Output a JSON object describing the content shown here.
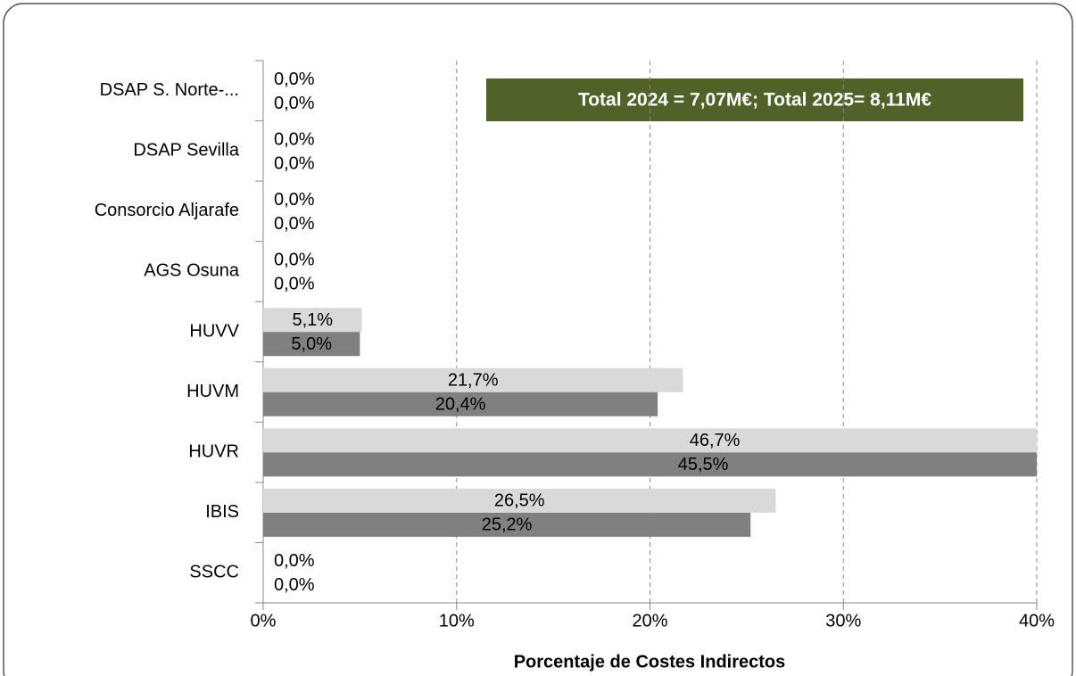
{
  "chart_data": {
    "type": "hbar",
    "annotation": "Total 2024 = 7,07M€; Total 2025= 8,11M€",
    "x_label": "Porcentaje de Costes Indirectos",
    "categories": [
      "DSAP S. Norte-...",
      "DSAP Sevilla",
      "Consorcio Aljarafe",
      "AGS Osuna",
      "HUVV",
      "HUVM",
      "HUVR",
      "IBIS",
      "SSCC"
    ],
    "series": [
      {
        "color": "#d9d9d9",
        "values": [
          0,
          0,
          0,
          0,
          5.1,
          21.7,
          46.7,
          26.5,
          0
        ],
        "value_labels": [
          "0,0%",
          "0,0%",
          "0,0%",
          "0,0%",
          "5,1%",
          "21,7%",
          "46,7%",
          "26,5%",
          "0,0%"
        ]
      },
      {
        "color": "#808080",
        "values": [
          0,
          0,
          0,
          0,
          5.0,
          20.4,
          45.5,
          25.2,
          0
        ],
        "value_labels": [
          "0,0%",
          "0,0%",
          "0,0%",
          "0,0%",
          "5,0%",
          "20,4%",
          "45,5%",
          "25,2%",
          "0,0%"
        ]
      }
    ],
    "xlim": [
      0,
      40
    ],
    "xticks": [
      {
        "value": 0,
        "label": "0%"
      },
      {
        "value": 10,
        "label": "10%"
      },
      {
        "value": 20,
        "label": "20%"
      },
      {
        "value": 30,
        "label": "30%"
      },
      {
        "value": 40,
        "label": "40%"
      }
    ],
    "grid": true
  }
}
